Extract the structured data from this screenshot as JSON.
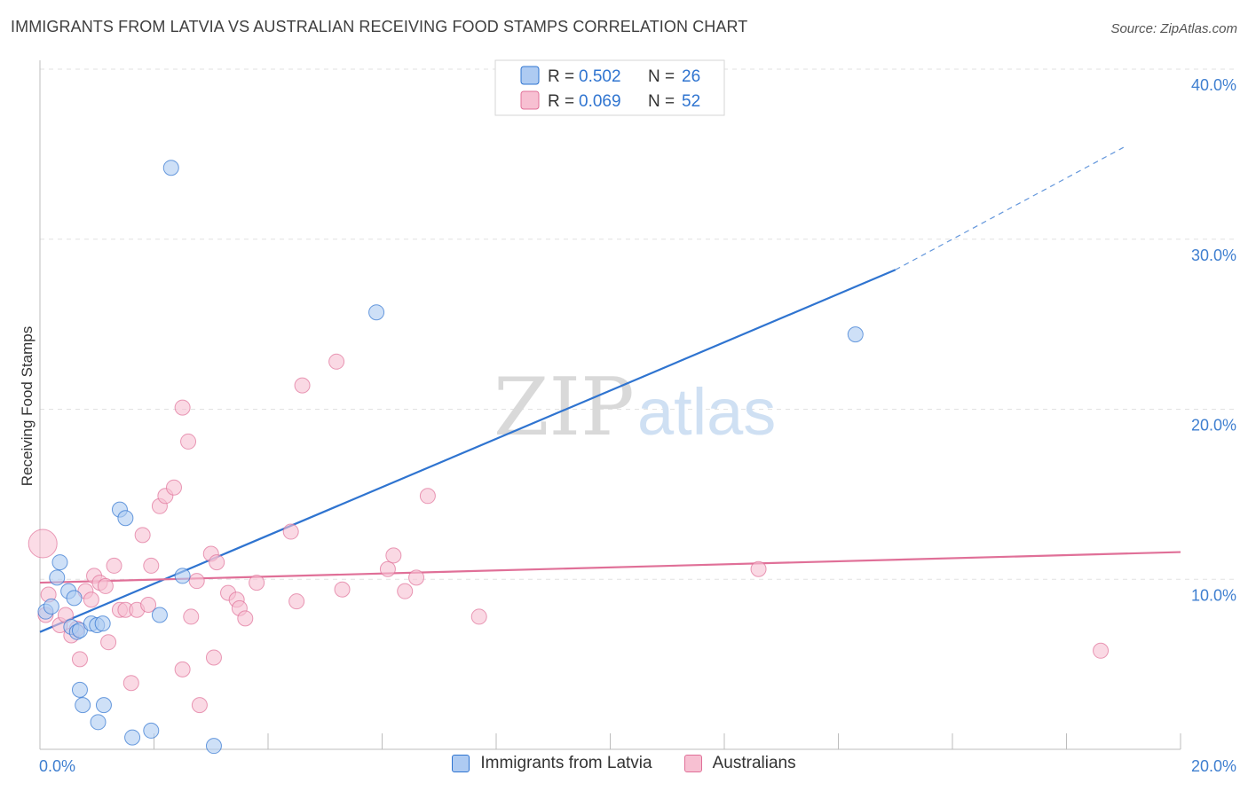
{
  "chart_data": {
    "type": "scatter",
    "title": "IMMIGRANTS FROM LATVIA VS AUSTRALIAN RECEIVING FOOD STAMPS CORRELATION CHART",
    "source": "Source: ZipAtlas.com",
    "ylabel": "Receiving Food Stamps",
    "xlabel": "",
    "xlim": [
      0,
      20
    ],
    "ylim": [
      0,
      40
    ],
    "x_tick_labels": [
      "0.0%",
      "20.0%"
    ],
    "y_ticks": [
      10,
      20,
      30,
      40
    ],
    "y_tick_labels": [
      "10.0%",
      "20.0%",
      "30.0%",
      "40.0%"
    ],
    "watermark": "ZIPatlas",
    "legend": [
      {
        "r_label": "R =",
        "r_value": "0.502",
        "n_label": "N =",
        "n_value": "26"
      },
      {
        "r_label": "R =",
        "r_value": "0.069",
        "n_label": "N =",
        "n_value": "52"
      }
    ],
    "series": [
      {
        "name": "Immigrants from Latvia",
        "color": "#2f74d0",
        "fill": "#aecbf2",
        "points": [
          [
            0.1,
            8.1
          ],
          [
            0.2,
            8.4
          ],
          [
            0.3,
            10.1
          ],
          [
            0.35,
            11.0
          ],
          [
            0.5,
            9.3
          ],
          [
            0.55,
            7.2
          ],
          [
            0.6,
            8.9
          ],
          [
            0.65,
            6.9
          ],
          [
            0.7,
            7.0
          ],
          [
            0.7,
            3.5
          ],
          [
            0.75,
            2.6
          ],
          [
            0.9,
            7.4
          ],
          [
            1.0,
            7.3
          ],
          [
            1.02,
            1.6
          ],
          [
            1.1,
            7.4
          ],
          [
            1.12,
            2.6
          ],
          [
            1.4,
            14.1
          ],
          [
            1.5,
            13.6
          ],
          [
            1.62,
            0.7
          ],
          [
            1.95,
            1.1
          ],
          [
            2.1,
            7.9
          ],
          [
            2.3,
            34.2
          ],
          [
            2.5,
            10.2
          ],
          [
            3.05,
            0.2
          ],
          [
            5.9,
            25.7
          ],
          [
            14.3,
            24.4
          ]
        ],
        "trend": {
          "x0": 0,
          "y0": 6.9,
          "x1": 15.0,
          "y1": 28.2,
          "dash_x1": 19.0,
          "dash_y1": 35.4
        }
      },
      {
        "name": "Australians",
        "color": "#e07098",
        "fill": "#f7c0d2",
        "points": [
          [
            0.05,
            12.1
          ],
          [
            0.1,
            7.9
          ],
          [
            0.15,
            9.1
          ],
          [
            0.35,
            7.3
          ],
          [
            0.45,
            7.9
          ],
          [
            0.55,
            6.7
          ],
          [
            0.65,
            7.1
          ],
          [
            0.7,
            5.3
          ],
          [
            0.8,
            9.3
          ],
          [
            0.9,
            8.8
          ],
          [
            0.95,
            10.2
          ],
          [
            1.05,
            9.8
          ],
          [
            1.15,
            9.6
          ],
          [
            1.2,
            6.3
          ],
          [
            1.3,
            10.8
          ],
          [
            1.4,
            8.2
          ],
          [
            1.5,
            8.2
          ],
          [
            1.6,
            3.9
          ],
          [
            1.7,
            8.2
          ],
          [
            1.8,
            12.6
          ],
          [
            1.9,
            8.5
          ],
          [
            1.95,
            10.8
          ],
          [
            2.1,
            14.3
          ],
          [
            2.2,
            14.9
          ],
          [
            2.35,
            15.4
          ],
          [
            2.5,
            20.1
          ],
          [
            2.5,
            4.7
          ],
          [
            2.6,
            18.1
          ],
          [
            2.65,
            7.8
          ],
          [
            2.75,
            9.9
          ],
          [
            2.8,
            2.6
          ],
          [
            3.0,
            11.5
          ],
          [
            3.05,
            5.4
          ],
          [
            3.1,
            11.0
          ],
          [
            3.3,
            9.2
          ],
          [
            3.45,
            8.8
          ],
          [
            3.5,
            8.3
          ],
          [
            3.6,
            7.7
          ],
          [
            3.8,
            9.8
          ],
          [
            4.4,
            12.8
          ],
          [
            4.5,
            8.7
          ],
          [
            4.6,
            21.4
          ],
          [
            5.2,
            22.8
          ],
          [
            5.3,
            9.4
          ],
          [
            6.1,
            10.6
          ],
          [
            6.2,
            11.4
          ],
          [
            6.4,
            9.3
          ],
          [
            6.6,
            10.1
          ],
          [
            6.8,
            14.9
          ],
          [
            7.7,
            7.8
          ],
          [
            12.6,
            10.6
          ],
          [
            18.6,
            5.8
          ]
        ],
        "trend": {
          "x0": 0,
          "y0": 9.8,
          "x1": 20.0,
          "y1": 11.6
        }
      }
    ]
  }
}
